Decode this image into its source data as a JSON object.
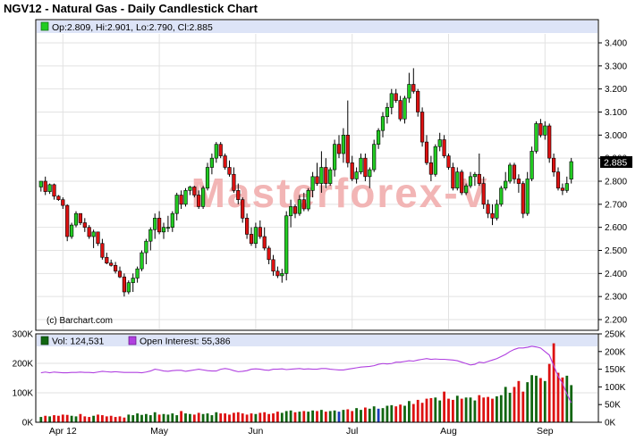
{
  "title": "NGV12 - Natural Gas - Daily Candlestick Chart",
  "colors": {
    "up": "#22cc22",
    "down": "#dd1111",
    "oi_line": "#b040e0",
    "vol_neutral": "#1a3ab8",
    "last_price_bg": "#000000",
    "watermark": "#f2b5b5"
  },
  "price_panel": {
    "legend": {
      "icon": "green-square-icon",
      "text": "Op:2.809, Hi:2.901, Lo:2.790, Cl:2.885"
    },
    "credit": "(c) Barchart.com",
    "watermark": "Masterforex-V",
    "last_price": "2.885",
    "y_ticks": [
      "3.400",
      "3.300",
      "3.200",
      "3.100",
      "3.000",
      "2.900",
      "2.800",
      "2.700",
      "2.600",
      "2.500",
      "2.400",
      "2.300",
      "2.200"
    ]
  },
  "volume_panel": {
    "legend_volume": "Vol: 124,531",
    "legend_oi": "Open Interest: 55,386",
    "y_ticks_left": [
      "300K",
      "200K",
      "100K",
      "0K"
    ],
    "y_ticks_right": [
      "250K",
      "200K",
      "150K",
      "100K",
      "50K",
      "0K"
    ]
  },
  "x_ticks": [
    "Apr 12",
    "May",
    "Jun",
    "Jul",
    "Aug",
    "Sep"
  ],
  "chart_data": {
    "type": "candlestick",
    "title": "NGV12 - Natural Gas - Daily Candlestick Chart",
    "price_range": [
      2.2,
      3.4
    ],
    "volume_left_range": [
      0,
      300000
    ],
    "open_interest_right_range": [
      0,
      250000
    ],
    "x_tick_positions": [
      {
        "label": "Apr 12",
        "index": 5
      },
      {
        "label": "May",
        "index": 27
      },
      {
        "label": "Jun",
        "index": 49
      },
      {
        "label": "Jul",
        "index": 71
      },
      {
        "label": "Aug",
        "index": 93
      },
      {
        "label": "Sep",
        "index": 115
      }
    ],
    "last": {
      "open": 2.809,
      "high": 2.901,
      "low": 2.79,
      "close": 2.885,
      "volume": 124531,
      "open_interest": 55386
    },
    "candles": [
      [
        2.775,
        2.8,
        2.755,
        2.8
      ],
      [
        2.8,
        2.82,
        2.74,
        2.755
      ],
      [
        2.755,
        2.79,
        2.745,
        2.785
      ],
      [
        2.785,
        2.79,
        2.72,
        2.735
      ],
      [
        2.735,
        2.74,
        2.715,
        2.72
      ],
      [
        2.72,
        2.73,
        2.68,
        2.695
      ],
      [
        2.695,
        2.7,
        2.54,
        2.56
      ],
      [
        2.56,
        2.62,
        2.55,
        2.61
      ],
      [
        2.61,
        2.67,
        2.6,
        2.66
      ],
      [
        2.66,
        2.66,
        2.61,
        2.62
      ],
      [
        2.62,
        2.64,
        2.58,
        2.6
      ],
      [
        2.6,
        2.61,
        2.55,
        2.56
      ],
      [
        2.56,
        2.59,
        2.51,
        2.58
      ],
      [
        2.58,
        2.58,
        2.52,
        2.53
      ],
      [
        2.53,
        2.55,
        2.46,
        2.47
      ],
      [
        2.47,
        2.49,
        2.44,
        2.445
      ],
      [
        2.445,
        2.46,
        2.43,
        2.435
      ],
      [
        2.435,
        2.45,
        2.4,
        2.41
      ],
      [
        2.41,
        2.43,
        2.38,
        2.385
      ],
      [
        2.385,
        2.4,
        2.3,
        2.32
      ],
      [
        2.32,
        2.37,
        2.31,
        2.36
      ],
      [
        2.36,
        2.4,
        2.32,
        2.38
      ],
      [
        2.38,
        2.43,
        2.36,
        2.42
      ],
      [
        2.42,
        2.5,
        2.41,
        2.49
      ],
      [
        2.49,
        2.55,
        2.44,
        2.54
      ],
      [
        2.54,
        2.6,
        2.5,
        2.59
      ],
      [
        2.59,
        2.66,
        2.55,
        2.64
      ],
      [
        2.64,
        2.67,
        2.57,
        2.58
      ],
      [
        2.58,
        2.62,
        2.55,
        2.6
      ],
      [
        2.6,
        2.65,
        2.58,
        2.6
      ],
      [
        2.6,
        2.67,
        2.58,
        2.66
      ],
      [
        2.66,
        2.75,
        2.63,
        2.74
      ],
      [
        2.74,
        2.76,
        2.68,
        2.7
      ],
      [
        2.7,
        2.77,
        2.69,
        2.76
      ],
      [
        2.76,
        2.78,
        2.74,
        2.775
      ],
      [
        2.775,
        2.78,
        2.73,
        2.74
      ],
      [
        2.74,
        2.76,
        2.68,
        2.69
      ],
      [
        2.69,
        2.78,
        2.68,
        2.77
      ],
      [
        2.77,
        2.88,
        2.76,
        2.86
      ],
      [
        2.86,
        2.92,
        2.83,
        2.9
      ],
      [
        2.9,
        2.97,
        2.88,
        2.96
      ],
      [
        2.96,
        2.97,
        2.9,
        2.91
      ],
      [
        2.91,
        2.92,
        2.85,
        2.86
      ],
      [
        2.86,
        2.89,
        2.82,
        2.83
      ],
      [
        2.83,
        2.86,
        2.75,
        2.76
      ],
      [
        2.76,
        2.79,
        2.7,
        2.72
      ],
      [
        2.72,
        2.73,
        2.62,
        2.64
      ],
      [
        2.64,
        2.66,
        2.55,
        2.57
      ],
      [
        2.57,
        2.6,
        2.52,
        2.53
      ],
      [
        2.53,
        2.62,
        2.51,
        2.6
      ],
      [
        2.6,
        2.63,
        2.55,
        2.56
      ],
      [
        2.56,
        2.6,
        2.5,
        2.51
      ],
      [
        2.51,
        2.52,
        2.44,
        2.46
      ],
      [
        2.46,
        2.48,
        2.39,
        2.41
      ],
      [
        2.41,
        2.43,
        2.38,
        2.39
      ],
      [
        2.39,
        2.42,
        2.36,
        2.4
      ],
      [
        2.4,
        2.67,
        2.37,
        2.65
      ],
      [
        2.65,
        2.72,
        2.6,
        2.69
      ],
      [
        2.69,
        2.7,
        2.64,
        2.66
      ],
      [
        2.66,
        2.74,
        2.65,
        2.72
      ],
      [
        2.72,
        2.75,
        2.67,
        2.68
      ],
      [
        2.68,
        2.77,
        2.67,
        2.76
      ],
      [
        2.76,
        2.84,
        2.73,
        2.82
      ],
      [
        2.82,
        2.88,
        2.78,
        2.79
      ],
      [
        2.79,
        2.93,
        2.75,
        2.86
      ],
      [
        2.86,
        2.9,
        2.77,
        2.79
      ],
      [
        2.79,
        2.86,
        2.78,
        2.85
      ],
      [
        2.85,
        2.98,
        2.82,
        2.96
      ],
      [
        2.96,
        3.0,
        2.9,
        2.92
      ],
      [
        2.92,
        3.03,
        2.88,
        3.0
      ],
      [
        3.0,
        3.15,
        2.86,
        2.88
      ],
      [
        2.88,
        2.91,
        2.8,
        2.81
      ],
      [
        2.81,
        2.86,
        2.79,
        2.84
      ],
      [
        2.84,
        2.92,
        2.83,
        2.9
      ],
      [
        2.9,
        2.92,
        2.8,
        2.82
      ],
      [
        2.82,
        2.86,
        2.77,
        2.85
      ],
      [
        2.85,
        2.98,
        2.84,
        2.96
      ],
      [
        2.96,
        3.03,
        2.94,
        3.02
      ],
      [
        3.02,
        3.1,
        2.99,
        3.08
      ],
      [
        3.08,
        3.14,
        3.05,
        3.12
      ],
      [
        3.12,
        3.2,
        3.09,
        3.18
      ],
      [
        3.18,
        3.2,
        3.14,
        3.15
      ],
      [
        3.15,
        3.17,
        3.06,
        3.07
      ],
      [
        3.07,
        3.17,
        3.05,
        3.16
      ],
      [
        3.16,
        3.27,
        3.14,
        3.22
      ],
      [
        3.22,
        3.29,
        3.18,
        3.19
      ],
      [
        3.19,
        3.2,
        3.08,
        3.1
      ],
      [
        3.1,
        3.12,
        2.95,
        2.97
      ],
      [
        2.97,
        3.0,
        2.87,
        2.88
      ],
      [
        2.88,
        2.91,
        2.8,
        2.83
      ],
      [
        2.83,
        2.96,
        2.82,
        2.95
      ],
      [
        2.95,
        3.01,
        2.93,
        2.98
      ],
      [
        2.98,
        3.0,
        2.9,
        2.91
      ],
      [
        2.91,
        2.92,
        2.85,
        2.86
      ],
      [
        2.86,
        2.88,
        2.76,
        2.77
      ],
      [
        2.77,
        2.86,
        2.76,
        2.84
      ],
      [
        2.84,
        2.85,
        2.74,
        2.75
      ],
      [
        2.75,
        2.79,
        2.74,
        2.78
      ],
      [
        2.78,
        2.84,
        2.77,
        2.82
      ],
      [
        2.82,
        2.84,
        2.78,
        2.83
      ],
      [
        2.83,
        2.92,
        2.78,
        2.79
      ],
      [
        2.79,
        2.82,
        2.68,
        2.7
      ],
      [
        2.7,
        2.72,
        2.64,
        2.66
      ],
      [
        2.66,
        2.7,
        2.61,
        2.64
      ],
      [
        2.64,
        2.72,
        2.63,
        2.7
      ],
      [
        2.7,
        2.78,
        2.69,
        2.77
      ],
      [
        2.77,
        2.84,
        2.76,
        2.8
      ],
      [
        2.8,
        2.88,
        2.79,
        2.87
      ],
      [
        2.87,
        2.88,
        2.79,
        2.81
      ],
      [
        2.81,
        2.83,
        2.75,
        2.79
      ],
      [
        2.79,
        2.8,
        2.64,
        2.66
      ],
      [
        2.66,
        2.84,
        2.65,
        2.81
      ],
      [
        2.81,
        2.95,
        2.8,
        2.93
      ],
      [
        2.93,
        3.06,
        2.92,
        3.05
      ],
      [
        3.05,
        3.07,
        2.99,
        3.0
      ],
      [
        3.0,
        3.06,
        2.98,
        3.04
      ],
      [
        3.04,
        3.05,
        2.88,
        2.9
      ],
      [
        2.9,
        2.92,
        2.82,
        2.84
      ],
      [
        2.84,
        2.86,
        2.76,
        2.77
      ],
      [
        2.77,
        2.79,
        2.74,
        2.76
      ],
      [
        2.76,
        2.82,
        2.75,
        2.79
      ],
      [
        2.809,
        2.901,
        2.79,
        2.885
      ]
    ],
    "volume": [
      18,
      22,
      20,
      24,
      22,
      26,
      25,
      22,
      20,
      28,
      20,
      18,
      22,
      26,
      24,
      20,
      22,
      18,
      20,
      16,
      26,
      24,
      30,
      25,
      28,
      24,
      34,
      26,
      28,
      26,
      30,
      24,
      38,
      30,
      28,
      26,
      32,
      28,
      30,
      24,
      34,
      30,
      30,
      26,
      32,
      34,
      30,
      26,
      30,
      28,
      32,
      34,
      28,
      30,
      36,
      32,
      38,
      40,
      34,
      36,
      38,
      36,
      40,
      38,
      42,
      36,
      38,
      40,
      36,
      42,
      44,
      38,
      48,
      42,
      50,
      46,
      54,
      46,
      48,
      56,
      58,
      54,
      60,
      56,
      72,
      62,
      76,
      66,
      80,
      82,
      84,
      74,
      104,
      80,
      76,
      90,
      80,
      84,
      84,
      74,
      92,
      84,
      86,
      80,
      88,
      92,
      120,
      100,
      120,
      140,
      104,
      136,
      160,
      158,
      150,
      140,
      198,
      268,
      168,
      152,
      158,
      126
    ],
    "open_interest": [
      140,
      142,
      140,
      142,
      141,
      140,
      140,
      141,
      141,
      142,
      141,
      141,
      140,
      142,
      144,
      143,
      142,
      143,
      142,
      141,
      141,
      141,
      141,
      140,
      142,
      145,
      150,
      148,
      145,
      144,
      146,
      147,
      147,
      144,
      146,
      148,
      150,
      148,
      146,
      145,
      145,
      150,
      152,
      150,
      146,
      143,
      144,
      146,
      150,
      151,
      150,
      148,
      147,
      150,
      150,
      151,
      149,
      150,
      151,
      152,
      150,
      151,
      150,
      150,
      152,
      152,
      150,
      149,
      148,
      148,
      150,
      152,
      154,
      156,
      157,
      158,
      160,
      164,
      166,
      165,
      166,
      170,
      170,
      172,
      174,
      173,
      176,
      178,
      180,
      178,
      179,
      178,
      178,
      177,
      176,
      174,
      170,
      166,
      162,
      164,
      170,
      168,
      172,
      176,
      180,
      186,
      192,
      200,
      206,
      210,
      210,
      212,
      215,
      213,
      210,
      200,
      190,
      160,
      130,
      110,
      80,
      55
    ]
  }
}
